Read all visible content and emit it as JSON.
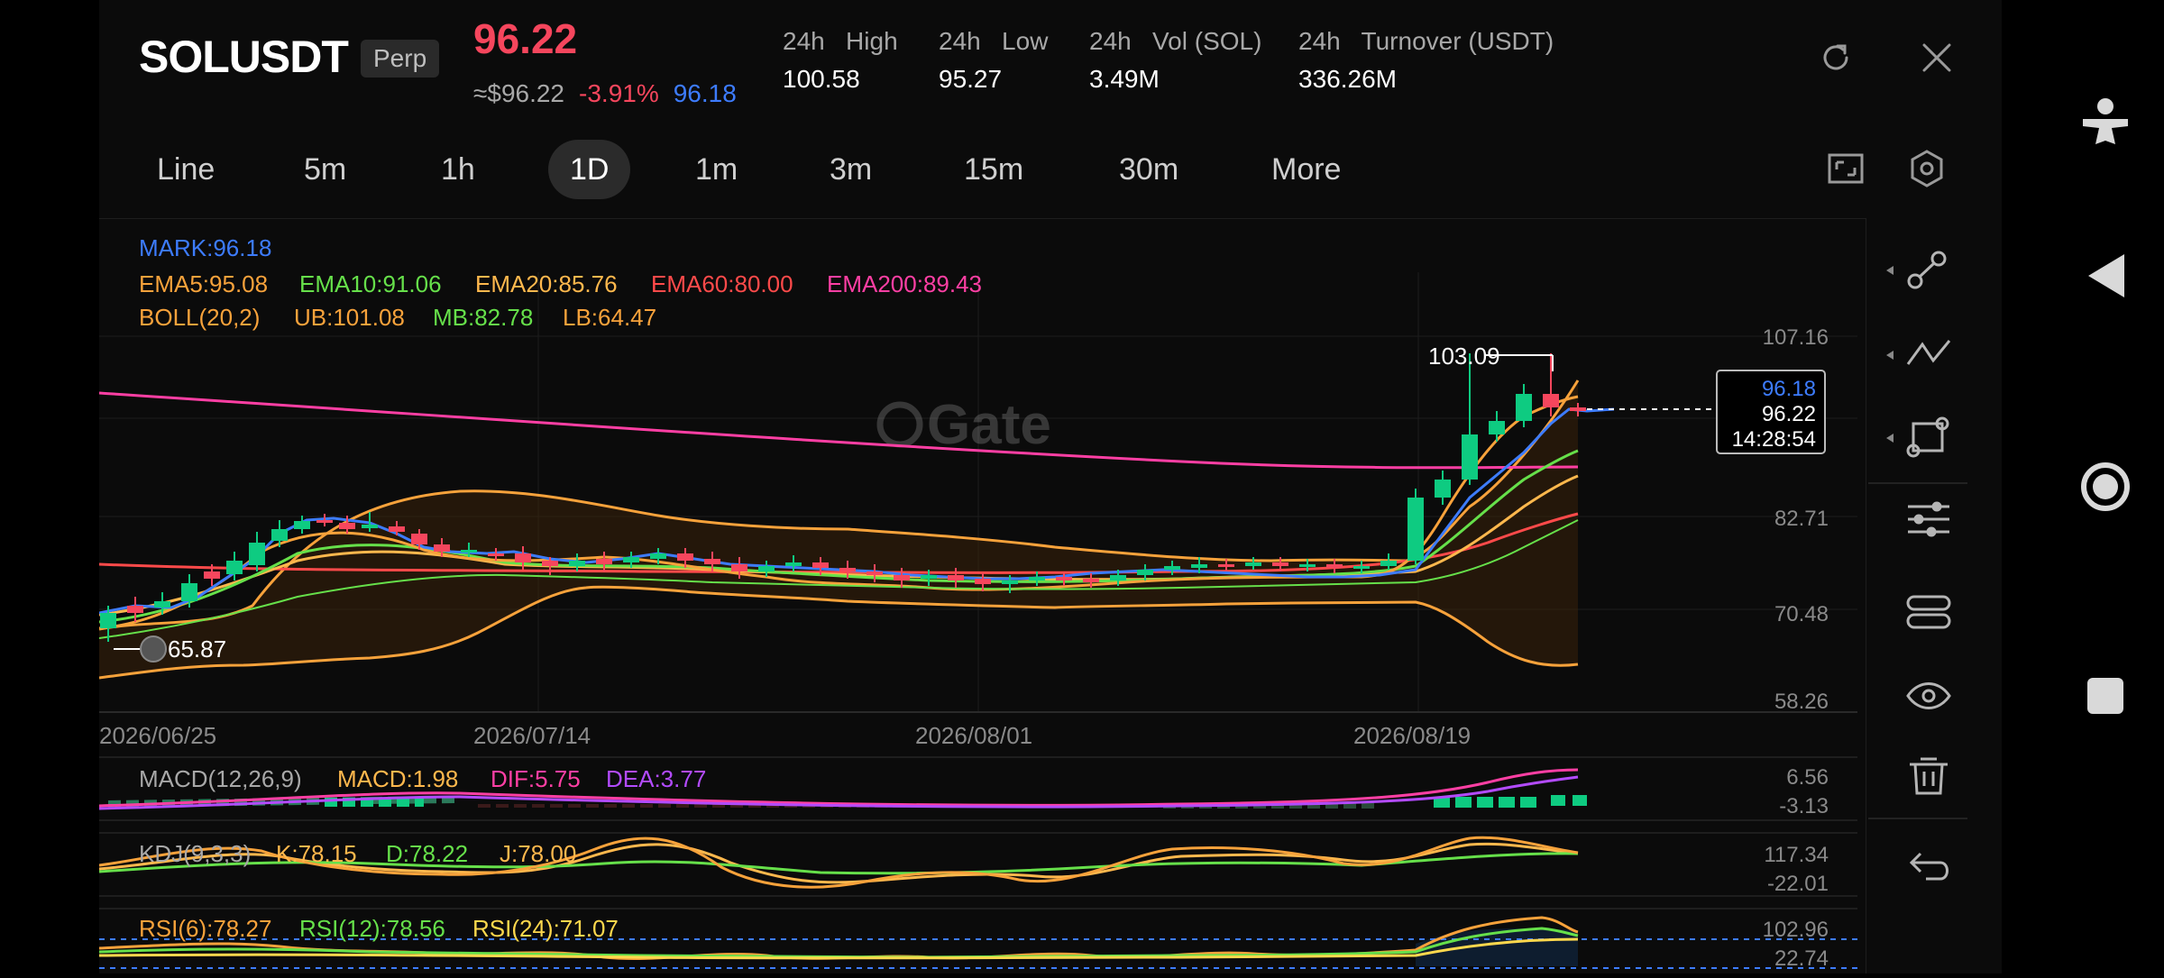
{
  "header": {
    "symbol": "SOLUSDT",
    "badge": "Perp",
    "last_price": "96.22",
    "approx_price": "≈$96.22",
    "change_pct": "-3.91%",
    "mark_price": "96.18",
    "stats": [
      {
        "label": "24h   High",
        "value": "100.58"
      },
      {
        "label": "24h   Low",
        "value": "95.27"
      },
      {
        "label": "24h   Vol (SOL)",
        "value": "3.49M"
      },
      {
        "label": "24h   Turnover (USDT)",
        "value": "336.26M"
      }
    ]
  },
  "tabs": [
    "Line",
    "5m",
    "1h",
    "1D",
    "1m",
    "3m",
    "15m",
    "30m",
    "More"
  ],
  "active_tab": "1D",
  "chart_data": {
    "type": "candlestick",
    "watermark": "Gate",
    "mark_label": "MARK:96.18",
    "ema_labels": [
      {
        "text": "EMA5:95.08",
        "color": "#f7a23b"
      },
      {
        "text": "EMA10:91.06",
        "color": "#66e04a"
      },
      {
        "text": "EMA20:85.76",
        "color": "#ffb84d"
      },
      {
        "text": "EMA60:80.00",
        "color": "#ff4a4a"
      },
      {
        "text": "EMA200:89.43",
        "color": "#ff3fa4"
      }
    ],
    "boll_labels": [
      {
        "text": "BOLL(20,2)",
        "color": "#f7a23b"
      },
      {
        "text": "UB:101.08",
        "color": "#f7a23b"
      },
      {
        "text": "MB:82.78",
        "color": "#66e04a"
      },
      {
        "text": "LB:64.47",
        "color": "#f7a23b"
      }
    ],
    "y_ticks": [
      "107.16",
      "82.71",
      "70.48",
      "58.26"
    ],
    "x_ticks": [
      "2026/06/25",
      "2026/07/14",
      "2026/08/01",
      "2026/08/19"
    ],
    "high_label": "103.09",
    "low_label": "65.87",
    "price_box": {
      "mark": "96.18",
      "last": "96.22",
      "countdown": "14:28:54"
    },
    "macd": {
      "labels": [
        {
          "text": "MACD(12,26,9)",
          "color": "#a8a8a8"
        },
        {
          "text": "MACD:1.98",
          "color": "#ffb84d"
        },
        {
          "text": "DIF:5.75",
          "color": "#ff3fa4"
        },
        {
          "text": "DEA:3.77",
          "color": "#b34bff"
        }
      ],
      "y_ticks": [
        "6.56",
        "-3.13"
      ]
    },
    "kdj": {
      "labels": [
        {
          "text": "KDJ(9,3,3)",
          "color": "#a8a8a8"
        },
        {
          "text": "K:78.15",
          "color": "#ffb84d"
        },
        {
          "text": "D:78.22",
          "color": "#66e04a"
        },
        {
          "text": "J:78.00",
          "color": "#ffb84d"
        }
      ],
      "y_ticks": [
        "117.34",
        "-22.01"
      ]
    },
    "rsi": {
      "labels": [
        {
          "text": "RSI(6):78.27",
          "color": "#f7a23b"
        },
        {
          "text": "RSI(12):78.56",
          "color": "#66e04a"
        },
        {
          "text": "RSI(24):71.07",
          "color": "#ffd84d"
        }
      ],
      "y_ticks": [
        "102.96",
        "22.74"
      ]
    }
  },
  "colors": {
    "up": "#0ecb81",
    "down": "#f6465d",
    "accent": "#3d7cff"
  },
  "icons": {
    "top": [
      "refresh-icon",
      "close-icon"
    ],
    "toolbar": [
      "fullscreen-icon",
      "settings-icon"
    ],
    "drawing": [
      "line-tool-icon",
      "fibonacci-tool-icon",
      "shape-tool-icon",
      "indicator-settings-icon",
      "layers-icon",
      "eye-icon",
      "trash-icon",
      "undo-icon"
    ],
    "system": [
      "accessibility-icon",
      "back-icon",
      "home-icon",
      "recents-icon"
    ]
  }
}
